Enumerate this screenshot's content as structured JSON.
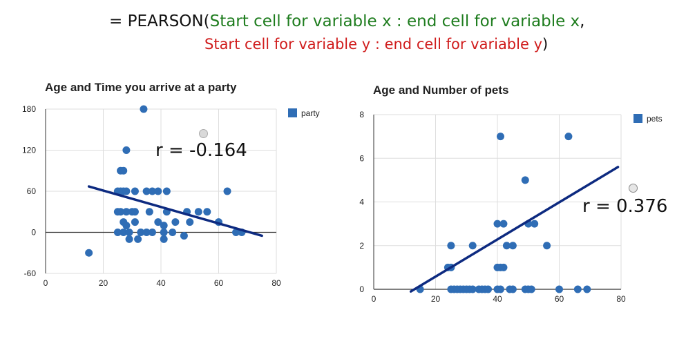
{
  "formula": {
    "prefix": "= PEARSON(",
    "arg_x": "Start cell for variable x : end cell for variable x",
    "comma": ",",
    "arg_y": "Start cell for variable y : end cell for variable y",
    "suffix": ")"
  },
  "colors": {
    "points": "#2f6db5",
    "trend": "#0d2a80",
    "grid": "#dddddd",
    "axis": "#333333",
    "formula_green": "#1f7d1f",
    "formula_red": "#d01c1c"
  },
  "chart_data": [
    {
      "type": "scatter",
      "title": "Age and Time you arrive at a party",
      "xlabel": "",
      "ylabel": "",
      "xlim": [
        0,
        80
      ],
      "ylim": [
        -60,
        180
      ],
      "xticks": [
        "0",
        "20",
        "40",
        "60",
        "80"
      ],
      "yticks": [
        "-60",
        "0",
        "60",
        "120",
        "180"
      ],
      "grid": true,
      "legend": "right",
      "annotation": "r = -0.164",
      "series": [
        {
          "name": "party",
          "points": [
            [
              15,
              -30
            ],
            [
              34,
              180
            ],
            [
              28,
              120
            ],
            [
              26,
              90
            ],
            [
              27,
              90
            ],
            [
              25,
              60
            ],
            [
              26,
              60
            ],
            [
              27,
              60
            ],
            [
              28,
              60
            ],
            [
              31,
              60
            ],
            [
              35,
              60
            ],
            [
              37,
              60
            ],
            [
              39,
              60
            ],
            [
              42,
              60
            ],
            [
              63,
              60
            ],
            [
              25,
              30
            ],
            [
              26,
              30
            ],
            [
              28,
              30
            ],
            [
              30,
              30
            ],
            [
              31,
              30
            ],
            [
              36,
              30
            ],
            [
              42,
              30
            ],
            [
              49,
              30
            ],
            [
              53,
              30
            ],
            [
              56,
              30
            ],
            [
              27,
              15
            ],
            [
              31,
              15
            ],
            [
              39,
              15
            ],
            [
              45,
              15
            ],
            [
              50,
              15
            ],
            [
              60,
              15
            ],
            [
              25,
              0
            ],
            [
              27,
              0
            ],
            [
              29,
              0
            ],
            [
              33,
              0
            ],
            [
              35,
              0
            ],
            [
              37,
              0
            ],
            [
              41,
              0
            ],
            [
              44,
              0
            ],
            [
              66,
              0
            ],
            [
              68,
              0
            ],
            [
              28,
              10
            ],
            [
              41,
              10
            ],
            [
              29,
              -10
            ],
            [
              32,
              -10
            ],
            [
              41,
              -10
            ],
            [
              48,
              -5
            ]
          ],
          "trendline": [
            [
              15,
              67
            ],
            [
              75,
              -5
            ]
          ]
        }
      ]
    },
    {
      "type": "scatter",
      "title": "Age and Number of pets",
      "xlabel": "",
      "ylabel": "",
      "xlim": [
        0,
        80
      ],
      "ylim": [
        0,
        8
      ],
      "xticks": [
        "0",
        "20",
        "40",
        "60",
        "80"
      ],
      "yticks": [
        "0",
        "2",
        "4",
        "6",
        "8"
      ],
      "grid": true,
      "legend": "right",
      "annotation": "r = 0.376",
      "series": [
        {
          "name": "pets",
          "points": [
            [
              41,
              7
            ],
            [
              63,
              7
            ],
            [
              49,
              5
            ],
            [
              40,
              3
            ],
            [
              42,
              3
            ],
            [
              50,
              3
            ],
            [
              52,
              3
            ],
            [
              25,
              2
            ],
            [
              32,
              2
            ],
            [
              43,
              2
            ],
            [
              45,
              2
            ],
            [
              56,
              2
            ],
            [
              24,
              1
            ],
            [
              25,
              1
            ],
            [
              40,
              1
            ],
            [
              41,
              1
            ],
            [
              42,
              1
            ],
            [
              15,
              0
            ],
            [
              25,
              0
            ],
            [
              26,
              0
            ],
            [
              27,
              0
            ],
            [
              28,
              0
            ],
            [
              29,
              0
            ],
            [
              30,
              0
            ],
            [
              31,
              0
            ],
            [
              32,
              0
            ],
            [
              34,
              0
            ],
            [
              35,
              0
            ],
            [
              36,
              0
            ],
            [
              37,
              0
            ],
            [
              40,
              0
            ],
            [
              41,
              0
            ],
            [
              44,
              0
            ],
            [
              45,
              0
            ],
            [
              49,
              0
            ],
            [
              50,
              0
            ],
            [
              51,
              0
            ],
            [
              60,
              0
            ],
            [
              66,
              0
            ],
            [
              69,
              0
            ]
          ],
          "trendline": [
            [
              12,
              -0.1
            ],
            [
              79,
              5.6
            ]
          ]
        }
      ]
    }
  ]
}
